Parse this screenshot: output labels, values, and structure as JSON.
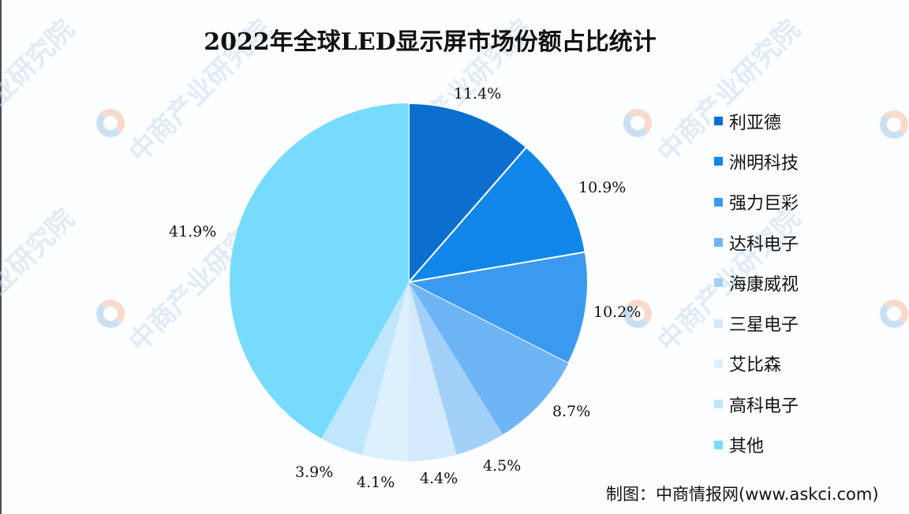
{
  "chart_data": {
    "type": "pie",
    "title": "2022年全球LED显示屏市场份额占比统计",
    "unit": "%",
    "start_angle_deg": 0,
    "direction": "clockwise",
    "legend_position": "right",
    "categories": [
      "利亚德",
      "洲明科技",
      "强力巨彩",
      "达科电子",
      "海康威视",
      "三星电子",
      "艾比森",
      "高科电子",
      "其他"
    ],
    "values": [
      11.4,
      10.9,
      10.2,
      8.7,
      4.5,
      4.4,
      4.1,
      3.9,
      41.9
    ],
    "labels": [
      "11.4%",
      "10.9%",
      "10.2%",
      "8.7%",
      "4.5%",
      "4.4%",
      "4.1%",
      "3.9%",
      "41.9%"
    ],
    "colors": [
      "#0a6fce",
      "#0e86ea",
      "#3a9af0",
      "#6db5f5",
      "#a3d0f9",
      "#d3e9fc",
      "#dcf0fd",
      "#bfe6fd",
      "#77dbfd"
    ],
    "source": "制图：中商情报网(www.askci.com)"
  },
  "title": "2022年全球LED显示屏市场份额占比统计",
  "legend": [
    {
      "label": "利亚德",
      "color": "#0a6fce"
    },
    {
      "label": "洲明科技",
      "color": "#0e86ea"
    },
    {
      "label": "强力巨彩",
      "color": "#3a9af0"
    },
    {
      "label": "达科电子",
      "color": "#6db5f5"
    },
    {
      "label": "海康威视",
      "color": "#a3d0f9"
    },
    {
      "label": "三星电子",
      "color": "#d3e9fc"
    },
    {
      "label": "艾比森",
      "color": "#dcf0fd"
    },
    {
      "label": "高科电子",
      "color": "#bfe6fd"
    },
    {
      "label": "其他",
      "color": "#77dbfd"
    }
  ],
  "data_labels": [
    "11.4%",
    "10.9%",
    "10.2%",
    "8.7%",
    "4.5%",
    "4.4%",
    "4.1%",
    "3.9%",
    "41.9%"
  ],
  "watermark": "中商产业研究院",
  "source": "制图：中商情报网(www.askci.com)"
}
